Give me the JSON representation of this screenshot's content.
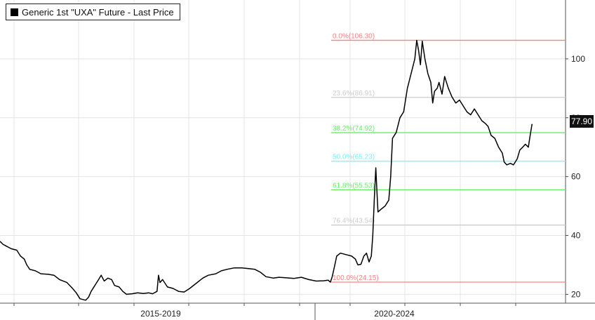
{
  "chart_data": {
    "type": "line",
    "legend": "Generic 1st \"UXA\" Future - Last Price",
    "last_price_label": "77.90",
    "y_ticks": [
      "20",
      "40",
      "60",
      "80",
      "100"
    ],
    "ylim": [
      17,
      120
    ],
    "period_labels": [
      "2015-2019",
      "2020-2024"
    ],
    "colors": {
      "line": "#000000",
      "fib_red": "#ff8080",
      "fib_grey": "#cccccc",
      "fib_green": "#66ee66",
      "fib_cyan": "#80eeff"
    },
    "fib_levels": [
      {
        "label": "0.0%(106.30)",
        "value": 106.3,
        "color": "#ff8080"
      },
      {
        "label": "23.6%(86.91)",
        "value": 86.91,
        "color": "#cccccc"
      },
      {
        "label": "38.2%(74.92)",
        "value": 74.92,
        "color": "#66ee66"
      },
      {
        "label": "50.0%(65.23)",
        "value": 65.23,
        "color": "#80eeff"
      },
      {
        "label": "61.8%(55.53)",
        "value": 55.53,
        "color": "#66ee66"
      },
      {
        "label": "76.4%(43.54)",
        "value": 43.54,
        "color": "#cccccc"
      },
      {
        "label": "100.0%(24.15)",
        "value": 24.15,
        "color": "#ff8080"
      }
    ],
    "series": [
      {
        "values": [
          [
            2015.0,
            38
          ],
          [
            2015.08,
            37
          ],
          [
            2015.15,
            36.5
          ],
          [
            2015.3,
            35.5
          ],
          [
            2015.45,
            35
          ],
          [
            2015.55,
            33
          ],
          [
            2015.65,
            32
          ],
          [
            2015.72,
            30
          ],
          [
            2015.8,
            28.5
          ],
          [
            2015.95,
            28
          ],
          [
            2016.1,
            27
          ],
          [
            2016.3,
            26.8
          ],
          [
            2016.45,
            26.5
          ],
          [
            2016.6,
            25
          ],
          [
            2016.8,
            24
          ],
          [
            2016.95,
            22
          ],
          [
            2017.05,
            20.5
          ],
          [
            2017.15,
            18.5
          ],
          [
            2017.3,
            18
          ],
          [
            2017.38,
            19
          ],
          [
            2017.45,
            21
          ],
          [
            2017.55,
            23
          ],
          [
            2017.65,
            25
          ],
          [
            2017.72,
            26.5
          ],
          [
            2017.8,
            24.5
          ],
          [
            2017.9,
            25.5
          ],
          [
            2018.0,
            25
          ],
          [
            2018.08,
            23
          ],
          [
            2018.2,
            22.5
          ],
          [
            2018.3,
            21
          ],
          [
            2018.4,
            20
          ],
          [
            2018.55,
            20.2
          ],
          [
            2018.7,
            20.5
          ],
          [
            2018.85,
            20.3
          ],
          [
            2019.0,
            20.5
          ],
          [
            2019.1,
            20.2
          ],
          [
            2019.22,
            21
          ],
          [
            2019.26,
            26.5
          ],
          [
            2019.3,
            24
          ],
          [
            2019.37,
            25
          ],
          [
            2019.5,
            22.5
          ],
          [
            2019.65,
            22
          ],
          [
            2019.8,
            21
          ],
          [
            2019.95,
            20.8
          ],
          [
            2020.1,
            22
          ],
          [
            2020.3,
            24
          ],
          [
            2020.45,
            25.5
          ],
          [
            2020.6,
            26.5
          ],
          [
            2020.8,
            27
          ],
          [
            2020.95,
            28
          ],
          [
            2021.1,
            28.5
          ],
          [
            2021.3,
            29
          ],
          [
            2021.5,
            29
          ],
          [
            2021.7,
            28.7
          ],
          [
            2021.85,
            28.5
          ],
          [
            2022.0,
            27.5
          ],
          [
            2022.15,
            26
          ],
          [
            2022.35,
            25.5
          ],
          [
            2022.5,
            25.8
          ],
          [
            2022.7,
            25.6
          ],
          [
            2022.9,
            25.4
          ],
          [
            2023.1,
            25.8
          ],
          [
            2023.3,
            25
          ],
          [
            2023.5,
            24.5
          ],
          [
            2023.7,
            24.6
          ],
          [
            2023.82,
            24.8
          ],
          [
            2023.88,
            24.15
          ],
          [
            2023.93,
            26
          ],
          [
            2024.0,
            30
          ],
          [
            2024.05,
            33
          ],
          [
            2024.15,
            34
          ],
          [
            2024.3,
            33.5
          ],
          [
            2024.45,
            33
          ],
          [
            2024.55,
            32
          ],
          [
            2024.62,
            30
          ],
          [
            2024.7,
            30.2
          ],
          [
            2024.78,
            33
          ],
          [
            2024.85,
            34
          ],
          [
            2024.92,
            31
          ],
          [
            2024.98,
            33
          ],
          [
            2025.02,
            40
          ],
          [
            2025.06,
            52
          ],
          [
            2025.1,
            63
          ],
          [
            2025.13,
            55
          ],
          [
            2025.16,
            48
          ],
          [
            2025.25,
            49
          ],
          [
            2025.35,
            50
          ],
          [
            2025.45,
            52
          ],
          [
            2025.5,
            60
          ],
          [
            2025.55,
            73
          ],
          [
            2025.65,
            75
          ],
          [
            2025.75,
            80
          ],
          [
            2025.85,
            82
          ],
          [
            2025.95,
            90
          ],
          [
            2026.05,
            95
          ],
          [
            2026.15,
            100
          ],
          [
            2026.2,
            106.3
          ],
          [
            2026.25,
            103
          ],
          [
            2026.3,
            98
          ],
          [
            2026.35,
            106
          ],
          [
            2026.42,
            100
          ],
          [
            2026.5,
            95
          ],
          [
            2026.58,
            92
          ],
          [
            2026.63,
            85
          ],
          [
            2026.68,
            89
          ],
          [
            2026.75,
            90
          ],
          [
            2026.8,
            92
          ],
          [
            2026.88,
            88
          ],
          [
            2026.95,
            94
          ],
          [
            2027.05,
            90
          ],
          [
            2027.15,
            87
          ],
          [
            2027.25,
            85
          ],
          [
            2027.35,
            86
          ],
          [
            2027.45,
            84
          ],
          [
            2027.55,
            82
          ],
          [
            2027.65,
            81
          ],
          [
            2027.75,
            83
          ],
          [
            2027.85,
            81
          ],
          [
            2027.95,
            79
          ],
          [
            2028.05,
            78
          ],
          [
            2028.12,
            77
          ],
          [
            2028.2,
            74
          ],
          [
            2028.3,
            73
          ],
          [
            2028.4,
            70
          ],
          [
            2028.5,
            68
          ],
          [
            2028.55,
            65
          ],
          [
            2028.62,
            64
          ],
          [
            2028.72,
            64.5
          ],
          [
            2028.8,
            64
          ],
          [
            2028.9,
            66
          ],
          [
            2028.97,
            69
          ],
          [
            2029.05,
            70
          ],
          [
            2029.12,
            71
          ],
          [
            2029.2,
            70
          ],
          [
            2029.25,
            74
          ],
          [
            2029.3,
            77.9
          ]
        ]
      }
    ]
  }
}
